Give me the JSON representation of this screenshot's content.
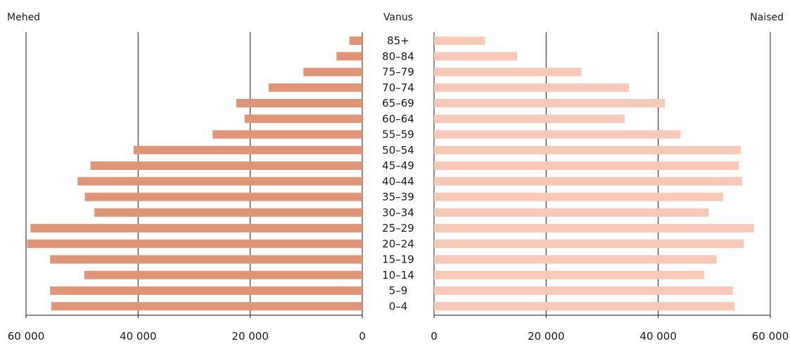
{
  "chart_data": {
    "type": "bar",
    "title": "",
    "left_label": "Mehed",
    "center_label": "Vanus",
    "right_label": "Naised",
    "categories": [
      "85+",
      "80–84",
      "75–79",
      "70–74",
      "65–69",
      "60–64",
      "55–59",
      "50–54",
      "45–49",
      "40–44",
      "35–39",
      "30–34",
      "25–29",
      "20–24",
      "15–19",
      "10–14",
      "5–9",
      "0–4"
    ],
    "series": [
      {
        "name": "Mehed",
        "color": "#df9576",
        "values": [
          2300,
          4600,
          10500,
          16700,
          22500,
          21000,
          26700,
          40800,
          48500,
          50800,
          49500,
          47800,
          59200,
          59800,
          55700,
          49600,
          55700,
          55500
        ]
      },
      {
        "name": "Naised",
        "color": "#f8c9b6",
        "values": [
          9100,
          14800,
          26300,
          34800,
          41200,
          34000,
          44000,
          54700,
          54400,
          55000,
          51600,
          49000,
          57100,
          55300,
          50400,
          48200,
          53300,
          53600
        ]
      }
    ],
    "xlim": [
      0,
      60000
    ],
    "ticks": [
      0,
      20000,
      40000,
      60000
    ],
    "tick_labels_left": [
      "60 000",
      "40 000",
      "20 000",
      "0"
    ],
    "tick_labels_right": [
      "0",
      "20 000",
      "40 000",
      "60 000"
    ],
    "grid": true
  }
}
